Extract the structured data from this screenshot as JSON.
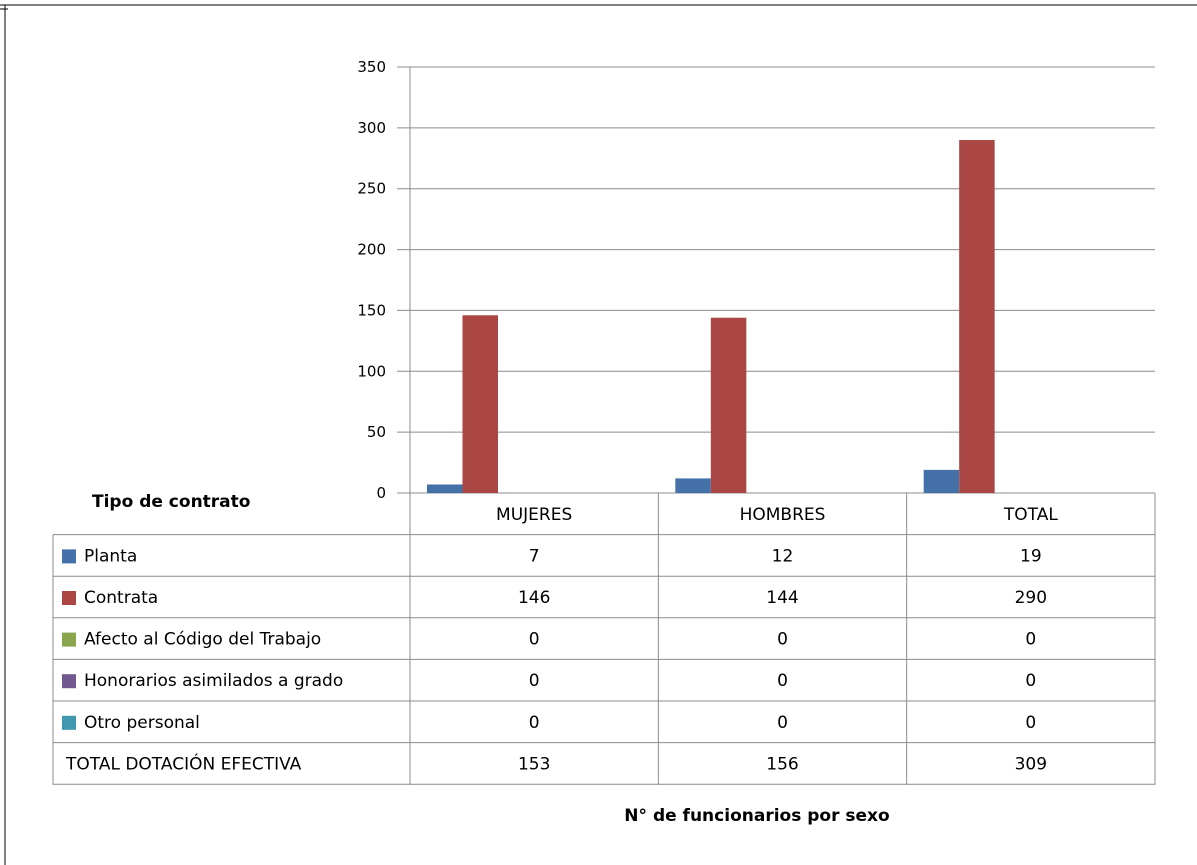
{
  "chart_data": {
    "type": "bar",
    "table_title": "Tipo de contrato",
    "xlabel": "N° de funcionarios por sexo",
    "categories": [
      "MUJERES",
      "HOMBRES",
      "TOTAL"
    ],
    "ylim": [
      0,
      350
    ],
    "yticks": [
      0,
      50,
      100,
      150,
      200,
      250,
      300,
      350
    ],
    "grid": true,
    "series": [
      {
        "name": "Planta",
        "color": "#4472A8",
        "values": [
          7,
          12,
          19
        ]
      },
      {
        "name": "Contrata",
        "color": "#AA4644",
        "values": [
          146,
          144,
          290
        ]
      },
      {
        "name": "Afecto al Código del Trabajo",
        "color": "#89A54E",
        "values": [
          0,
          0,
          0
        ]
      },
      {
        "name": "Honorarios asimilados a grado",
        "color": "#71588F",
        "values": [
          0,
          0,
          0
        ]
      },
      {
        "name": "Otro personal",
        "color": "#4198AF",
        "values": [
          0,
          0,
          0
        ]
      }
    ],
    "total_row": {
      "label": "TOTAL DOTACIÓN EFECTIVA",
      "values": [
        153,
        156,
        309
      ]
    }
  }
}
